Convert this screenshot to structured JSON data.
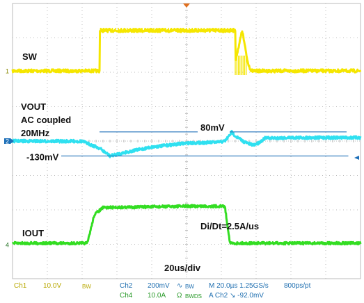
{
  "chart_data": {
    "type": "line",
    "title": "",
    "xlabel": "",
    "ylabel": "",
    "timebase": "20us/div",
    "xlim_us": [
      0,
      200
    ],
    "divisions": {
      "x": 10,
      "y": 8
    },
    "grid": true,
    "colors": {
      "background": "#ffffff",
      "grid": "#bbbbbb",
      "sw": "#f5e600",
      "vout": "#2fe0f0",
      "iout": "#33dd22",
      "marker": "#1d6fb8",
      "label": "#111111"
    },
    "labels": {
      "sw": "SW",
      "vout_line1": "VOUT",
      "vout_line2": "AC coupled",
      "vout_line3": "20MHz",
      "iout": "IOUT",
      "overshoot": "80mV",
      "undershoot": "-130mV",
      "slew": "Di/Dt=2.5A/us",
      "timebase_label": "20us/div"
    },
    "channel_markers": {
      "sw": "1",
      "vout": "2",
      "iout": "4"
    },
    "series": [
      {
        "name": "SW",
        "x": [
          0,
          50,
          50.1,
          128,
          128.1,
          132,
          135,
          137,
          200
        ],
        "y": [
          0,
          0,
          0.4,
          0.4,
          0.1,
          0.4,
          0.1,
          0,
          0
        ]
      },
      {
        "name": "VOUT",
        "x": [
          0,
          40,
          50,
          56,
          65,
          80,
          100,
          118,
          122,
          124,
          126,
          128,
          133,
          138,
          141,
          145,
          160,
          200
        ],
        "y": [
          0,
          -2,
          -62,
          -130,
          -98,
          -52,
          -18,
          -10,
          0,
          35,
          80,
          45,
          -6,
          -35,
          -20,
          25,
          30,
          30
        ]
      },
      {
        "name": "IOUT",
        "x": [
          0,
          43,
          47,
          52,
          100,
          120,
          122,
          125,
          200
        ],
        "y": [
          0,
          0,
          2.0,
          2.5,
          2.6,
          2.6,
          2.6,
          0,
          0
        ]
      }
    ],
    "annotations": [
      "80mV",
      "-130mV",
      "Di/Dt=2.5A/us",
      "20us/div"
    ]
  },
  "status_bar": {
    "ch1_name": "Ch1",
    "ch1_scale": "10.0V",
    "ch1_bw": "BW",
    "ch2_name": "Ch2",
    "ch2_scale": "200mV",
    "ch2_coupling": "∿",
    "ch2_bw": "BW",
    "ch4_name": "Ch4",
    "ch4_scale": "10.0A",
    "ch4_coupling": "Ω",
    "ch4_bw": "BWDS",
    "horizontal": "M 20.0µs 1.25GS/s",
    "resolution": "800ps/pt",
    "trigger": "A Ch2 ↘ -92.0mV"
  }
}
